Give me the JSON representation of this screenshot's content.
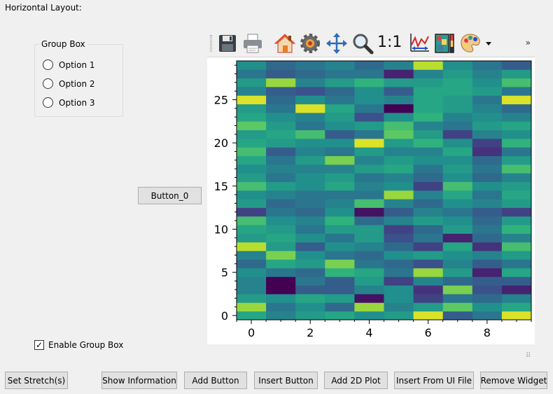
{
  "layout": {
    "title": "Horizontal Layout:"
  },
  "group_box": {
    "title": "Group Box",
    "options": [
      "Option 1",
      "Option 2",
      "Option 3"
    ]
  },
  "button_0": {
    "label": "Button_0"
  },
  "enable_group_box": {
    "label": "Enable Group Box",
    "checked": true
  },
  "toolbar": {
    "icons": [
      "save-icon",
      "print-icon",
      "home-icon",
      "settings-gear-icon",
      "pan-arrows-icon",
      "zoom-magnifier-icon",
      "aspect-ratio-icon",
      "curve-fit-icon",
      "colorbar-icon",
      "color-palette-icon",
      "dropdown-arrow-icon"
    ],
    "ratio_label": "1:1",
    "more": "»"
  },
  "bottom_buttons": {
    "set_stretch": "Set Stretch(s)",
    "show_information": "Show Information",
    "add_button": "Add Button",
    "insert_button": "Insert Button",
    "add_2d_plot": "Add 2D Plot",
    "insert_from_ui_file": "Insert From UI File",
    "remove_widget": "Remove Widget"
  },
  "chart_data": {
    "type": "heatmap",
    "colormap": "viridis",
    "title": "",
    "xlabel": "",
    "ylabel": "",
    "xlim": [
      -0.5,
      9.5
    ],
    "ylim": [
      -0.5,
      29.5
    ],
    "xticks": [
      0,
      2,
      4,
      6,
      8
    ],
    "yticks": [
      0,
      5,
      10,
      15,
      20,
      25
    ],
    "grid": false,
    "values": [
      [
        0.6,
        0.45,
        0.55,
        0.6,
        0.5,
        0.55,
        0.95,
        0.3,
        0.4,
        0.95
      ],
      [
        0.85,
        0.4,
        0.5,
        0.35,
        0.85,
        0.45,
        0.55,
        0.75,
        0.5,
        0.6
      ],
      [
        0.55,
        0.5,
        0.6,
        0.55,
        0.05,
        0.5,
        0.2,
        0.4,
        0.35,
        0.45
      ],
      [
        0.45,
        0.0,
        0.3,
        0.3,
        0.45,
        0.5,
        0.15,
        0.8,
        0.25,
        0.1
      ],
      [
        0.45,
        0.0,
        0.4,
        0.3,
        0.55,
        0.2,
        0.45,
        0.35,
        0.3,
        0.3
      ],
      [
        0.5,
        0.4,
        0.35,
        0.65,
        0.6,
        0.4,
        0.85,
        0.55,
        0.1,
        0.6
      ],
      [
        0.35,
        0.6,
        0.55,
        0.8,
        0.4,
        0.35,
        0.25,
        0.45,
        0.3,
        0.4
      ],
      [
        0.45,
        0.8,
        0.5,
        0.4,
        0.35,
        0.5,
        0.55,
        0.5,
        0.45,
        0.55
      ],
      [
        0.9,
        0.55,
        0.3,
        0.5,
        0.45,
        0.35,
        0.2,
        0.6,
        0.15,
        0.7
      ],
      [
        0.55,
        0.6,
        0.5,
        0.4,
        0.55,
        0.25,
        0.4,
        0.1,
        0.35,
        0.45
      ],
      [
        0.6,
        0.55,
        0.4,
        0.55,
        0.55,
        0.2,
        0.35,
        0.55,
        0.4,
        0.65
      ],
      [
        0.7,
        0.5,
        0.45,
        0.65,
        0.35,
        0.45,
        0.55,
        0.5,
        0.35,
        0.55
      ],
      [
        0.2,
        0.4,
        0.35,
        0.5,
        0.05,
        0.3,
        0.45,
        0.4,
        0.3,
        0.2
      ],
      [
        0.55,
        0.35,
        0.4,
        0.45,
        0.7,
        0.45,
        0.35,
        0.5,
        0.45,
        0.55
      ],
      [
        0.5,
        0.45,
        0.4,
        0.4,
        0.4,
        0.85,
        0.45,
        0.6,
        0.4,
        0.6
      ],
      [
        0.7,
        0.55,
        0.5,
        0.6,
        0.45,
        0.5,
        0.2,
        0.7,
        0.5,
        0.55
      ],
      [
        0.55,
        0.4,
        0.5,
        0.55,
        0.4,
        0.45,
        0.35,
        0.5,
        0.35,
        0.45
      ],
      [
        0.5,
        0.45,
        0.45,
        0.45,
        0.55,
        0.6,
        0.4,
        0.55,
        0.4,
        0.7
      ],
      [
        0.6,
        0.4,
        0.55,
        0.8,
        0.45,
        0.55,
        0.5,
        0.5,
        0.35,
        0.55
      ],
      [
        0.7,
        0.3,
        0.45,
        0.4,
        0.55,
        0.45,
        0.45,
        0.6,
        0.15,
        0.4
      ],
      [
        0.6,
        0.55,
        0.5,
        0.5,
        0.95,
        0.55,
        0.65,
        0.5,
        0.2,
        0.65
      ],
      [
        0.55,
        0.6,
        0.7,
        0.3,
        0.4,
        0.75,
        0.55,
        0.2,
        0.45,
        0.5
      ],
      [
        0.75,
        0.55,
        0.4,
        0.5,
        0.55,
        0.7,
        0.45,
        0.4,
        0.55,
        0.6
      ],
      [
        0.6,
        0.5,
        0.45,
        0.55,
        0.25,
        0.5,
        0.65,
        0.45,
        0.5,
        0.45
      ],
      [
        0.55,
        0.4,
        0.95,
        0.6,
        0.4,
        0.0,
        0.6,
        0.55,
        0.45,
        0.35
      ],
      [
        0.95,
        0.35,
        0.5,
        0.4,
        0.5,
        0.45,
        0.6,
        0.55,
        0.4,
        0.95
      ],
      [
        0.45,
        0.3,
        0.25,
        0.35,
        0.5,
        0.3,
        0.6,
        0.6,
        0.55,
        0.4
      ],
      [
        0.55,
        0.85,
        0.45,
        0.55,
        0.65,
        0.55,
        0.55,
        0.6,
        0.5,
        0.7
      ],
      [
        0.4,
        0.3,
        0.35,
        0.4,
        0.4,
        0.1,
        0.45,
        0.55,
        0.45,
        0.55
      ],
      [
        0.5,
        0.35,
        0.4,
        0.45,
        0.35,
        0.45,
        0.9,
        0.5,
        0.4,
        0.3
      ]
    ]
  }
}
